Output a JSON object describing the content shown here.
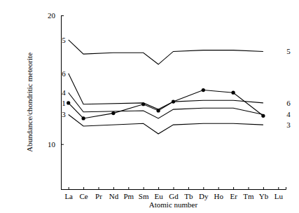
{
  "chart_data": {
    "type": "line",
    "x_label": "Atomic number",
    "y_label": "Abundance/chondritic meteorite",
    "xlim": [
      56.5,
      71.5
    ],
    "xticks": [
      {
        "value": 57,
        "label": "La"
      },
      {
        "value": 58,
        "label": "Ce"
      },
      {
        "value": 59,
        "label": "Pr"
      },
      {
        "value": 60,
        "label": "Nd"
      },
      {
        "value": 61,
        "label": "Pm"
      },
      {
        "value": 62,
        "label": "Sm"
      },
      {
        "value": 63,
        "label": "Eu"
      },
      {
        "value": 64,
        "label": "Gd"
      },
      {
        "value": 65,
        "label": "Tb"
      },
      {
        "value": 66,
        "label": "Dy"
      },
      {
        "value": 67,
        "label": "Ho"
      },
      {
        "value": 68,
        "label": "Er"
      },
      {
        "value": 69,
        "label": "Tm"
      },
      {
        "value": 70,
        "label": "Yb"
      },
      {
        "value": 71,
        "label": "Lu"
      }
    ],
    "ylim": [
      6.5,
      20
    ],
    "yticks": [
      10,
      20
    ],
    "grid": false,
    "series": [
      {
        "name": "1",
        "color": "#000000",
        "marker": "circle",
        "x": [
          57,
          58,
          60,
          62,
          63,
          64,
          66,
          68,
          70
        ],
        "values": [
          13.2,
          12.0,
          12.4,
          13.1,
          12.6,
          13.3,
          14.2,
          14.0,
          12.2
        ]
      },
      {
        "name": "3",
        "color": "#000000",
        "x": [
          57,
          58,
          62,
          63,
          64,
          66,
          68,
          70
        ],
        "values": [
          12.3,
          11.4,
          11.6,
          10.8,
          11.5,
          11.6,
          11.6,
          11.5
        ]
      },
      {
        "name": "4",
        "color": "#000000",
        "x": [
          57,
          58,
          62,
          63,
          64,
          66,
          68,
          70
        ],
        "values": [
          14.0,
          12.5,
          12.6,
          12.0,
          12.7,
          12.8,
          12.8,
          12.3
        ]
      },
      {
        "name": "5",
        "color": "#000000",
        "x": [
          57,
          58,
          60,
          62,
          63,
          64,
          66,
          68,
          70
        ],
        "values": [
          18.1,
          17.0,
          17.1,
          17.1,
          16.2,
          17.2,
          17.3,
          17.3,
          17.2
        ]
      },
      {
        "name": "6",
        "color": "#000000",
        "x": [
          57,
          58,
          62,
          63,
          64,
          66,
          68,
          70
        ],
        "values": [
          15.5,
          13.1,
          13.2,
          12.7,
          13.3,
          13.4,
          13.4,
          13.2
        ]
      }
    ]
  }
}
